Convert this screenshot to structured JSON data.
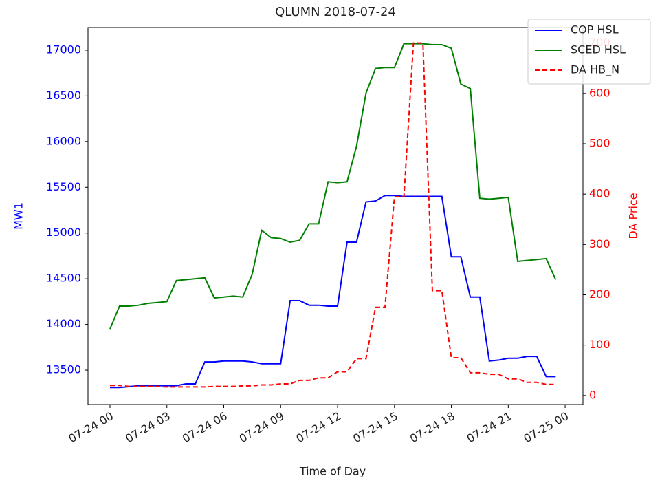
{
  "chart_data": {
    "type": "line",
    "title": "QLUMN 2018-07-24",
    "xlabel": "Time of Day",
    "ylabel": "MW1",
    "y2label": "DA Price",
    "y_color": "blue",
    "y2_color": "red",
    "legend": "upper right",
    "x": [
      0,
      0.5,
      1,
      1.5,
      2,
      2.5,
      3,
      3.5,
      4,
      4.5,
      5,
      5.5,
      6,
      6.5,
      7,
      7.5,
      8,
      8.5,
      9,
      9.5,
      10,
      10.5,
      11,
      11.5,
      12,
      12.5,
      13,
      13.5,
      14,
      14.5,
      15,
      15.5,
      16,
      16.5,
      17,
      17.5,
      18,
      18.5,
      19,
      19.5,
      20,
      20.5,
      21,
      21.5,
      22,
      22.5,
      23,
      23.5
    ],
    "xlim": [
      -1.16,
      24.94
    ],
    "xticks": [
      {
        "value": 0,
        "label": "07-24 00"
      },
      {
        "value": 3,
        "label": "07-24 03"
      },
      {
        "value": 6,
        "label": "07-24 06"
      },
      {
        "value": 9,
        "label": "07-24 09"
      },
      {
        "value": 12,
        "label": "07-24 12"
      },
      {
        "value": 15,
        "label": "07-24 15"
      },
      {
        "value": 18,
        "label": "07-24 18"
      },
      {
        "value": 21,
        "label": "07-24 21"
      },
      {
        "value": 24,
        "label": "07-25 00"
      }
    ],
    "ylim": [
      13124,
      17248
    ],
    "yticks": [
      13500,
      14000,
      14500,
      15000,
      15500,
      16000,
      16500,
      17000
    ],
    "y2lim": [
      -18,
      731
    ],
    "y2ticks": [
      0,
      100,
      200,
      300,
      400,
      500,
      600,
      700
    ],
    "series": [
      {
        "name": "COP HSL",
        "color": "blue",
        "linestyle": "solid",
        "values": [
          13310,
          13310,
          13320,
          13330,
          13330,
          13330,
          13330,
          13330,
          13350,
          13350,
          13590,
          13590,
          13600,
          13600,
          13600,
          13590,
          13570,
          13570,
          13570,
          14260,
          14260,
          14210,
          14210,
          14200,
          14200,
          14900,
          14900,
          15340,
          15350,
          15410,
          15410,
          15400,
          15400,
          15400,
          15400,
          15400,
          14740,
          14740,
          14300,
          14300,
          13600,
          13610,
          13630,
          13630,
          13650,
          13650,
          13430,
          13430
        ]
      },
      {
        "name": "SCED HSL",
        "color": "green",
        "linestyle": "solid",
        "values": [
          13950,
          14200,
          14200,
          14210,
          14230,
          14240,
          14250,
          14480,
          14490,
          14500,
          14510,
          14290,
          14300,
          14310,
          14300,
          14550,
          15030,
          14950,
          14940,
          14900,
          14920,
          15100,
          15100,
          15560,
          15550,
          15560,
          15950,
          16530,
          16800,
          16810,
          16810,
          17070,
          17070,
          17070,
          17060,
          17060,
          17020,
          16630,
          16580,
          15380,
          15370,
          15380,
          15390,
          14690,
          14700,
          14710,
          14720,
          14490
        ]
      },
      {
        "name": "DA HB_N",
        "color": "red",
        "linestyle": "dashed",
        "axis": "y2",
        "values": [
          20,
          20,
          18,
          18,
          18,
          18,
          17,
          17,
          17,
          17,
          17,
          18,
          18,
          18,
          19,
          19,
          21,
          21,
          23,
          23,
          30,
          30,
          35,
          35,
          47,
          47,
          73,
          73,
          175,
          175,
          395,
          395,
          700,
          700,
          208,
          208,
          75,
          75,
          45,
          45,
          42,
          42,
          33,
          33,
          26,
          26,
          22,
          22
        ]
      }
    ]
  }
}
